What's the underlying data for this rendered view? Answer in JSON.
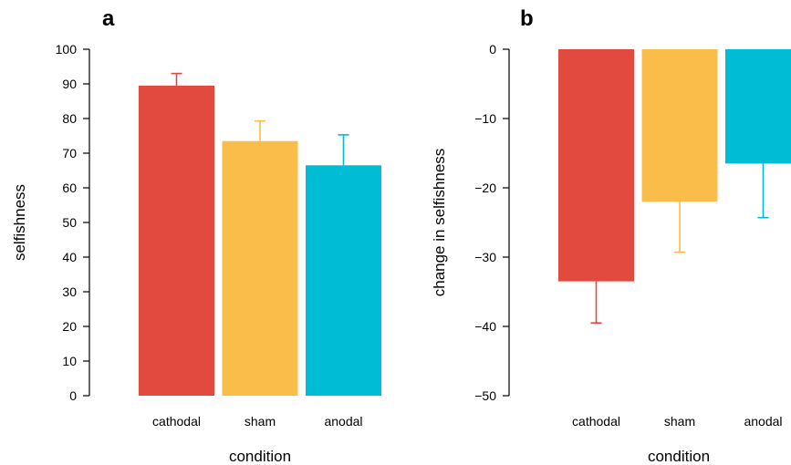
{
  "chart_data": [
    {
      "type": "bar",
      "panel": "a",
      "categories": [
        "cathodal",
        "sham",
        "anodal"
      ],
      "series": [
        {
          "values": [
            89.5,
            73.5,
            66.5
          ],
          "error": [
            3.5,
            5.8,
            8.8
          ]
        }
      ],
      "colors": [
        "#e34a3f",
        "#fbbd4a",
        "#00bcd4"
      ],
      "xlabel": "condition",
      "ylabel": "selfishness",
      "ylim": [
        0,
        100
      ],
      "yticks": [
        0,
        10,
        20,
        30,
        40,
        50,
        60,
        70,
        80,
        90,
        100
      ],
      "error_direction": "up",
      "grid": false
    },
    {
      "type": "bar",
      "panel": "b",
      "categories": [
        "cathodal",
        "sham",
        "anodal"
      ],
      "series": [
        {
          "values": [
            -33.5,
            -22,
            -16.5
          ],
          "error": [
            6,
            7.3,
            7.8
          ]
        }
      ],
      "colors": [
        "#e34a3f",
        "#fbbd4a",
        "#00bcd4"
      ],
      "xlabel": "condition",
      "ylabel": "change in selfishness",
      "ylim": [
        -50,
        0
      ],
      "yticks": [
        0,
        -10,
        -20,
        -30,
        -40,
        -50
      ],
      "error_direction": "down",
      "grid": false
    }
  ]
}
